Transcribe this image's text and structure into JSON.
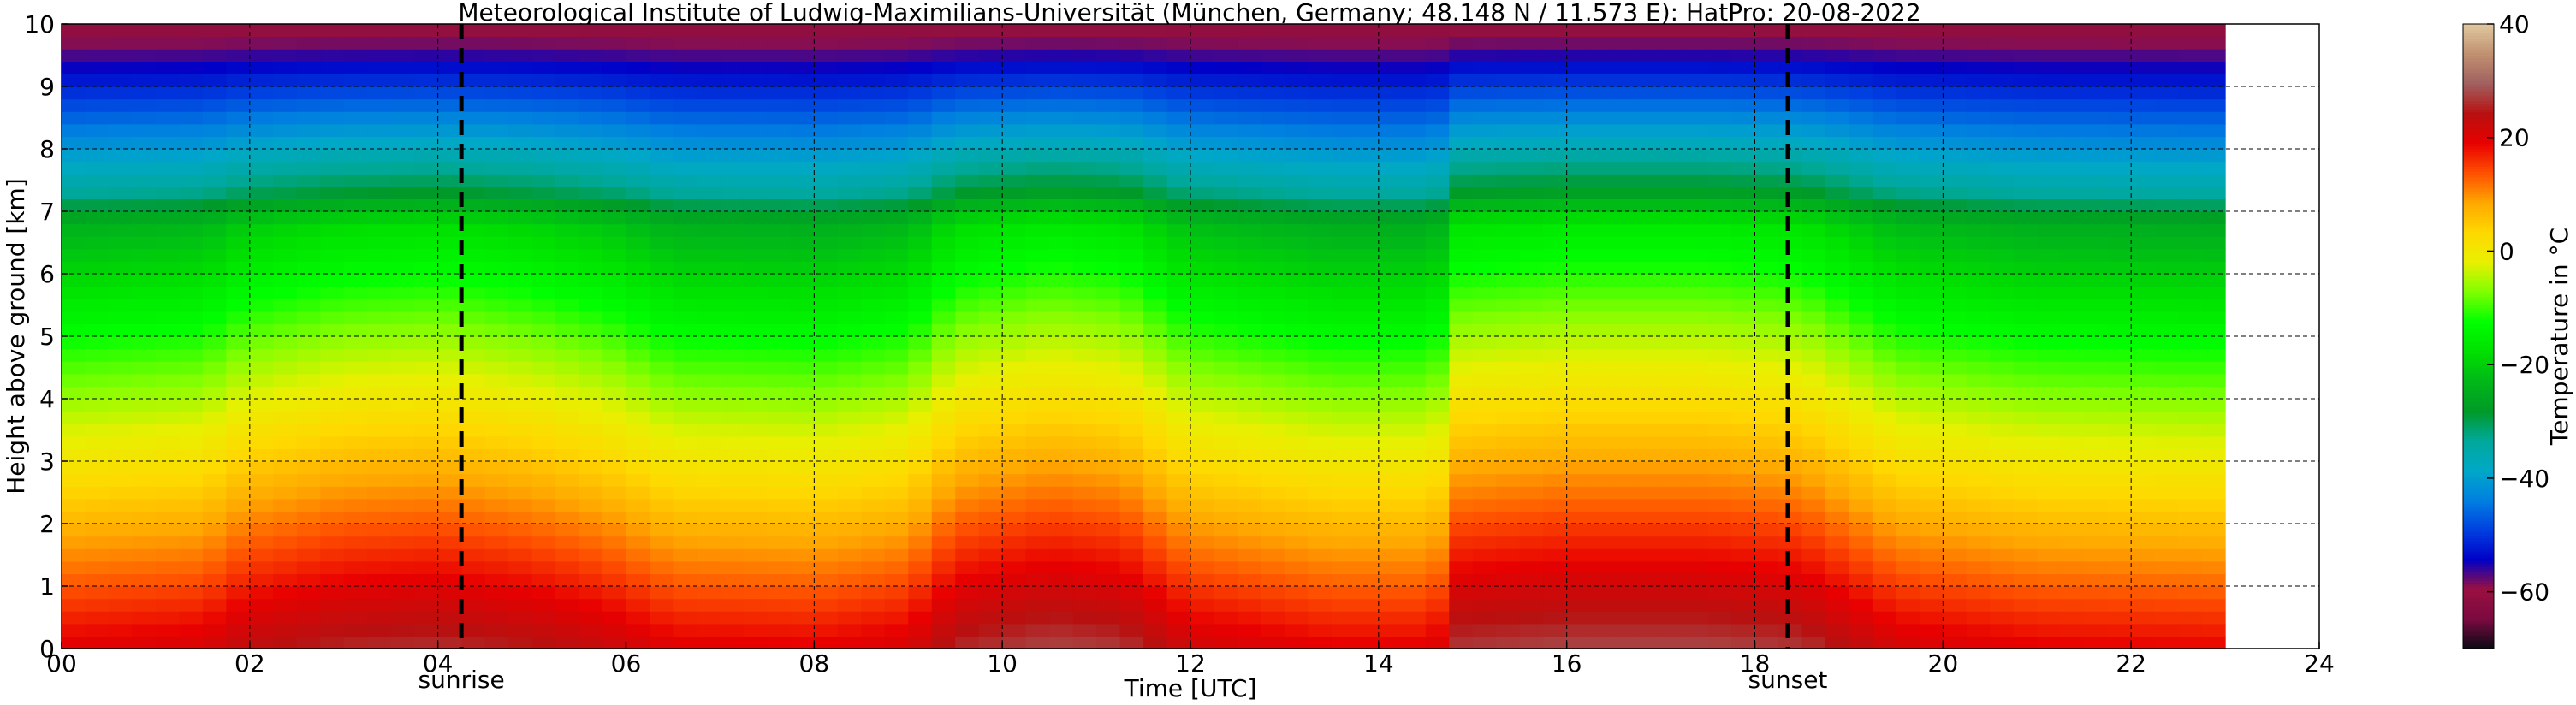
{
  "chart_data": {
    "type": "heatmap",
    "title": "Meteorological Institute of Ludwig-Maximilians-Universität (München, Germany; 48.148 N / 11.573 E):    HatPro: 20-08-2022",
    "xlabel": "Time [UTC]",
    "ylabel": "Height above ground [km]",
    "xlim": [
      0,
      24
    ],
    "ylim": [
      0,
      10
    ],
    "x_ticks": [
      "00",
      "02",
      "04",
      "06",
      "08",
      "10",
      "12",
      "14",
      "16",
      "18",
      "20",
      "22",
      "24"
    ],
    "y_ticks": [
      "0",
      "1",
      "2",
      "3",
      "4",
      "5",
      "6",
      "7",
      "8",
      "9",
      "10"
    ],
    "grid": true,
    "data_extent_hours": [
      0,
      23
    ],
    "colorbar": {
      "label": "Temperature in °C",
      "range": [
        -70,
        40
      ],
      "ticks": [
        "40",
        "20",
        "0",
        "−20",
        "−40",
        "−60"
      ],
      "tick_values": [
        40,
        20,
        0,
        -20,
        -40,
        -60
      ],
      "colors": [
        "#0a0a14",
        "#7a0a40",
        "#9a1040",
        "#0000c8",
        "#0040e0",
        "#0080e0",
        "#00a8c8",
        "#00a89a",
        "#009a28",
        "#00b818",
        "#00e000",
        "#00ff00",
        "#80ff00",
        "#e8f000",
        "#ffd800",
        "#ffa800",
        "#ff5000",
        "#e80000",
        "#b81010",
        "#a06060",
        "#c09070",
        "#e0c8a0"
      ]
    },
    "temperature_model": {
      "surface_temperature_c": [
        [
          0,
          20
        ],
        [
          1.5,
          21
        ],
        [
          2,
          24
        ],
        [
          3,
          26
        ],
        [
          4,
          26.5
        ],
        [
          5,
          25
        ],
        [
          5.8,
          23
        ],
        [
          6.5,
          20
        ],
        [
          8,
          19.5
        ],
        [
          9,
          21
        ],
        [
          9.5,
          26
        ],
        [
          10.5,
          28
        ],
        [
          11.3,
          27
        ],
        [
          12,
          22
        ],
        [
          13.5,
          19.5
        ],
        [
          14.6,
          19.5
        ],
        [
          14.8,
          27
        ],
        [
          16,
          28
        ],
        [
          17.5,
          28
        ],
        [
          18.5,
          27
        ],
        [
          19.5,
          21.5
        ],
        [
          21,
          19.5
        ],
        [
          23,
          19
        ]
      ],
      "lapse_rate_c_per_km": -6.5,
      "tropopause_transition_km": [
        6.8,
        7.3
      ],
      "cold_top_c": -58
    },
    "annotations": [
      {
        "label": "sunrise",
        "x": 4.25
      },
      {
        "label": "sunset",
        "x": 18.35
      }
    ]
  }
}
